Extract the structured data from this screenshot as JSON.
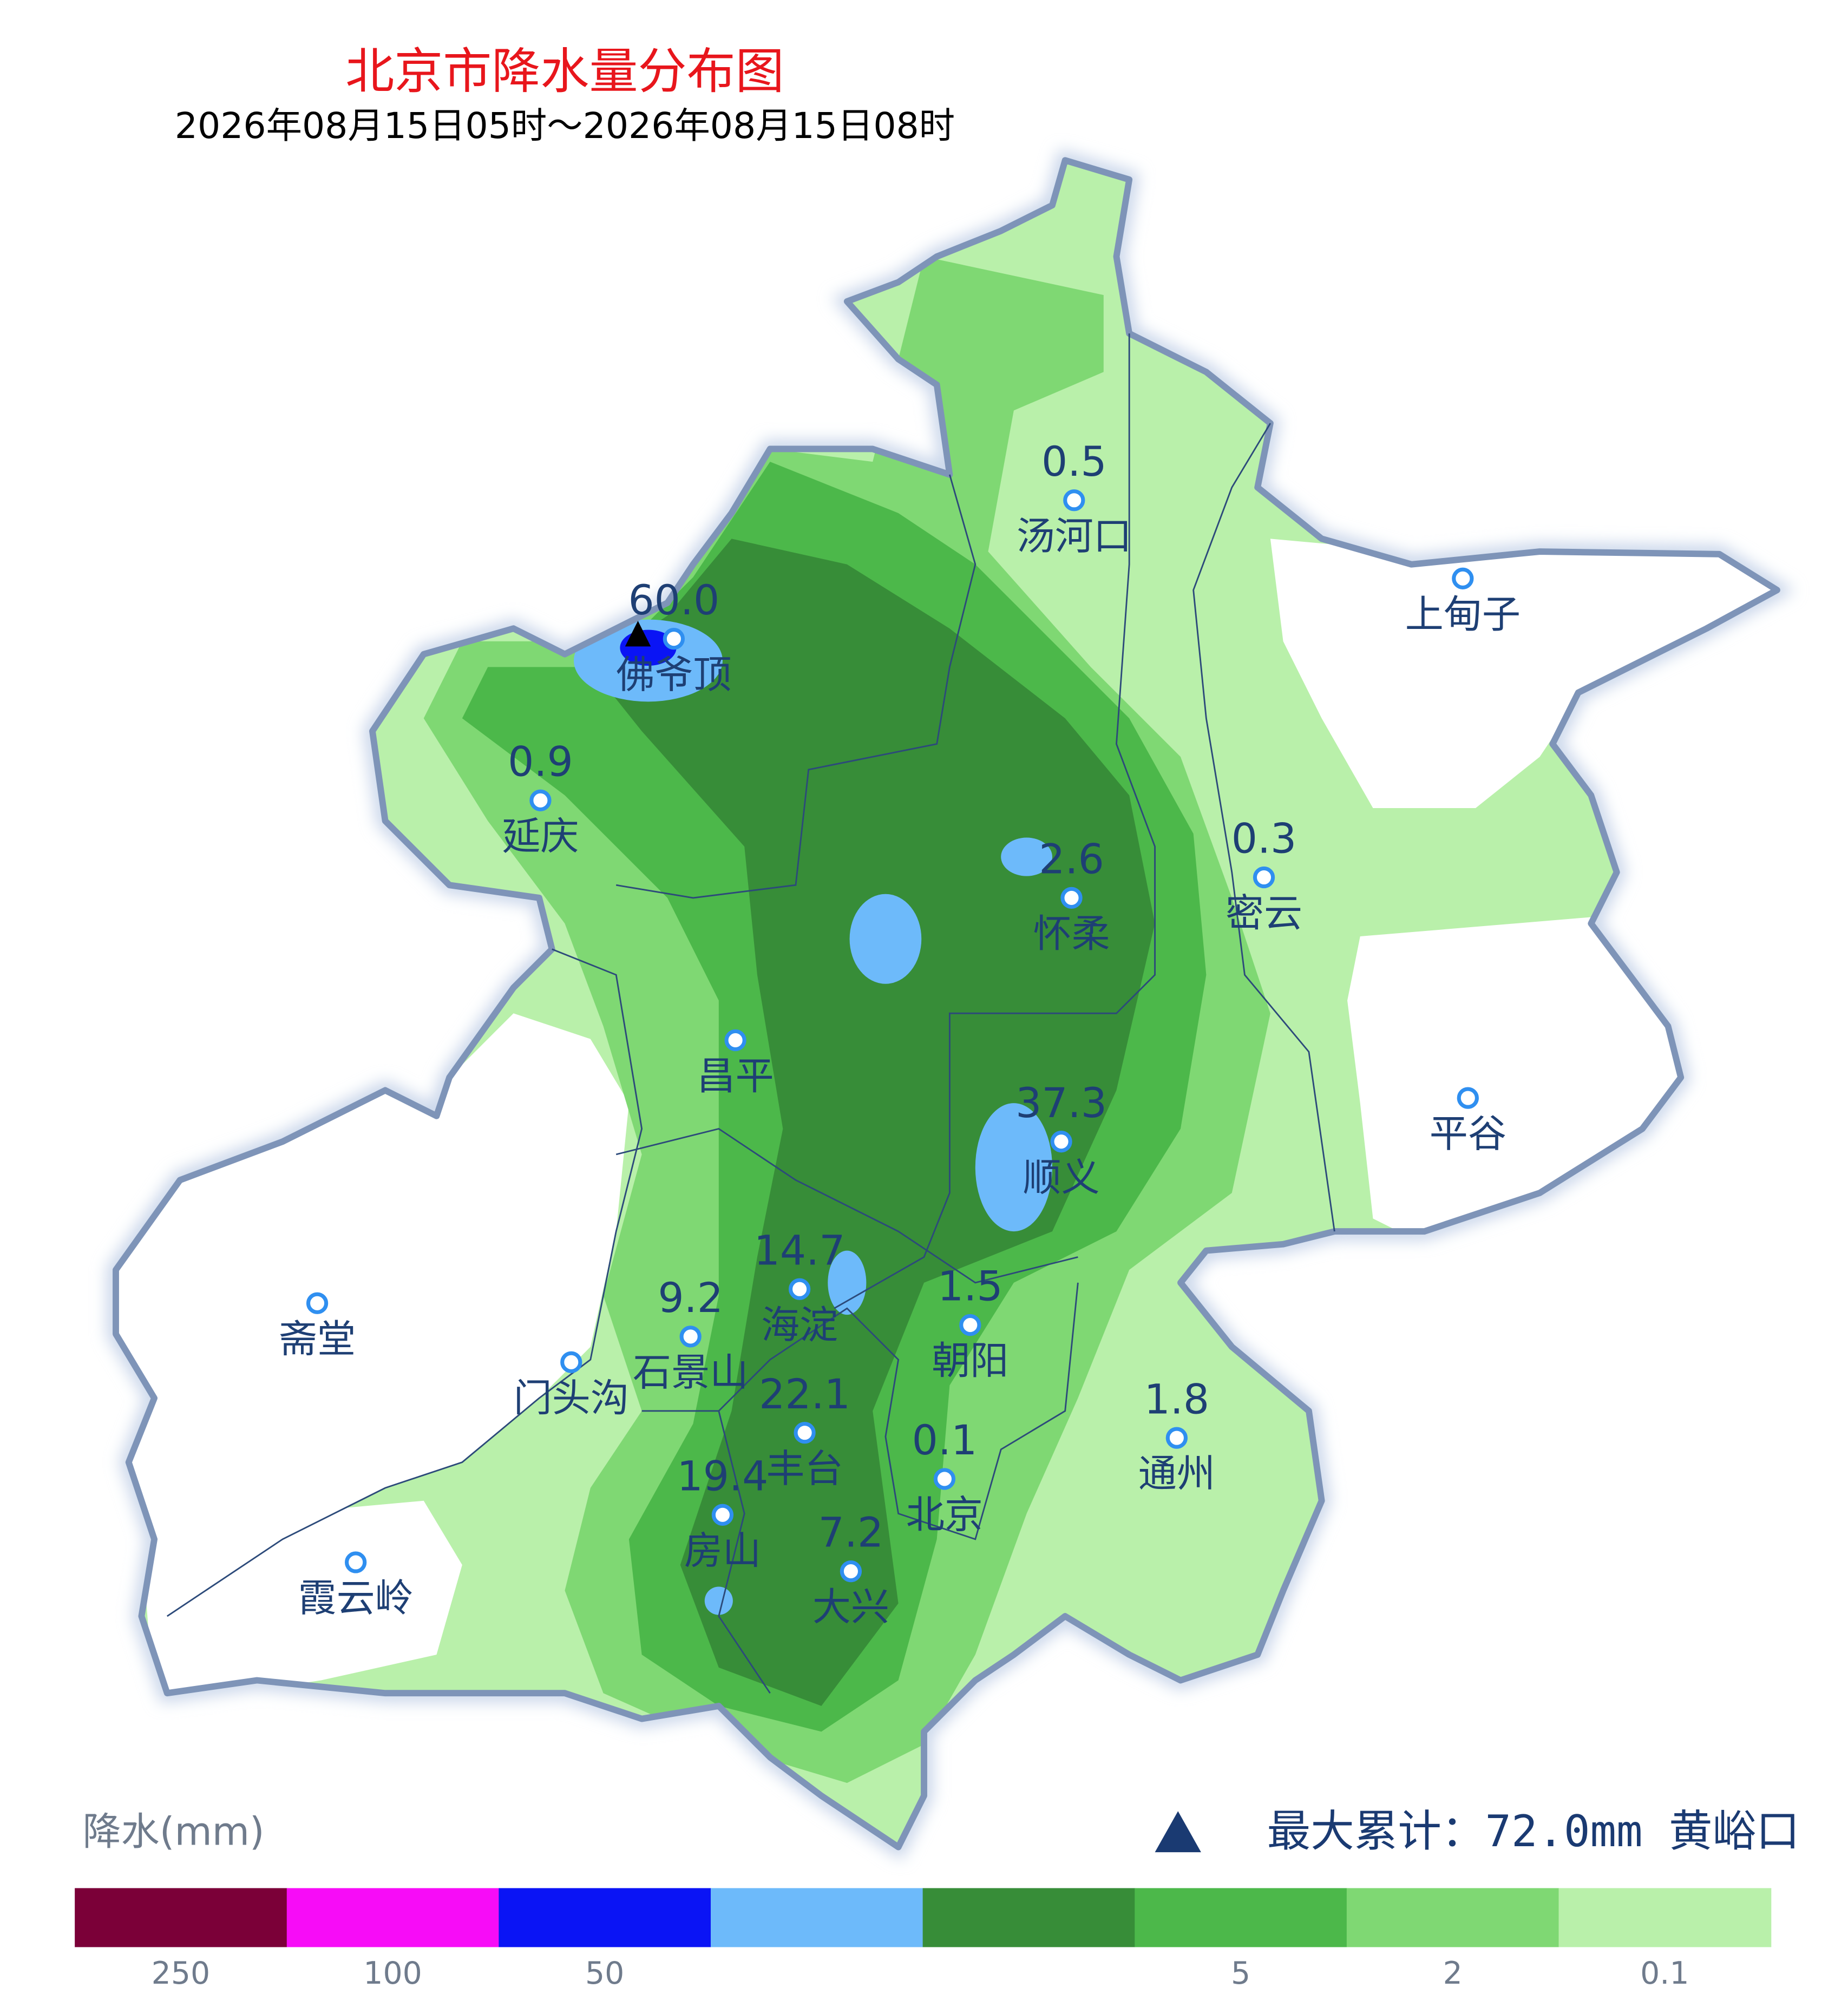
{
  "header": {
    "title": "北京市降水量分布图",
    "subtitle": "2026年08月15日05时～2026年08月15日08时"
  },
  "stations": [
    {
      "name": "佛爷顶",
      "value": "60.0"
    },
    {
      "name": "延庆",
      "value": "0.9"
    },
    {
      "name": "汤河口",
      "value": "0.5"
    },
    {
      "name": "上甸子",
      "value": null
    },
    {
      "name": "怀柔",
      "value": "2.6"
    },
    {
      "name": "密云",
      "value": "0.3"
    },
    {
      "name": "昌平",
      "value": null
    },
    {
      "name": "平谷",
      "value": null
    },
    {
      "name": "顺义",
      "value": "37.3"
    },
    {
      "name": "海淀",
      "value": "14.7"
    },
    {
      "name": "石景山",
      "value": "9.2"
    },
    {
      "name": "朝阳",
      "value": "1.5"
    },
    {
      "name": "斋堂",
      "value": null
    },
    {
      "name": "门头沟",
      "value": null
    },
    {
      "name": "丰台",
      "value": "22.1"
    },
    {
      "name": "通州",
      "value": "1.8"
    },
    {
      "name": "北京",
      "value": "0.1"
    },
    {
      "name": "房山",
      "value": "19.4"
    },
    {
      "name": "大兴",
      "value": "7.2"
    },
    {
      "name": "霞云岭",
      "value": null
    }
  ],
  "max_note": "最大累计：72.0mm 黄峪口",
  "legend": {
    "title": "降水(mm)",
    "items": [
      {
        "color": "#7b0038",
        "label": "250"
      },
      {
        "color": "#f70cf7",
        "label": "100"
      },
      {
        "color": "#0a14f5",
        "label": "50"
      },
      {
        "color": "#6dbafa",
        "label": null
      },
      {
        "color": "#378d38",
        "label": null
      },
      {
        "color": "#4cb84a",
        "label": "5"
      },
      {
        "color": "#7fd873",
        "label": "2"
      },
      {
        "color": "#b9f0aa",
        "label": "0.1"
      }
    ]
  }
}
